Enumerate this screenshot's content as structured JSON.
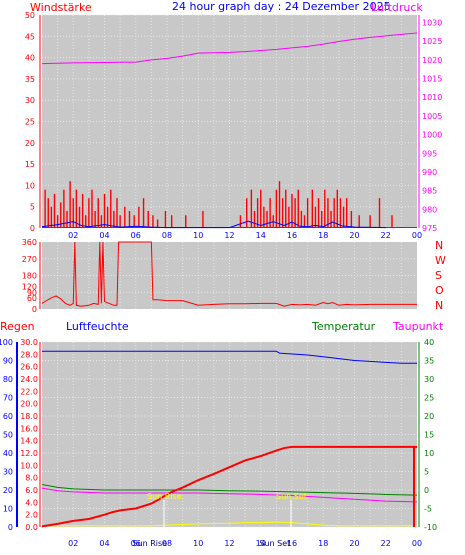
{
  "colors": {
    "background": "#ffffff",
    "plot_bg": "#c8c8c8",
    "grid": "#e6e6e6",
    "wind": "#ff0000",
    "gust_low": "#0000ff",
    "pressure": "#ff00ff",
    "rain": "#ff0000",
    "humidity": "#0000ff",
    "temperature": "#008000",
    "dewpoint": "#ff00ff",
    "solar": "#ffff00"
  },
  "header": {
    "wind_label": "Windstärke",
    "title": "24 hour graph day : 24 Dezember 2025",
    "pressure_label": "Luftdruck"
  },
  "direction_labels": [
    "N",
    "W",
    "S",
    "O",
    "N"
  ],
  "bottom_labels": {
    "rain": "Regen",
    "humidity": "Luftfeuchte",
    "temperature": "Temperatur",
    "dewpoint": "Taupunkt"
  },
  "annotations": [
    "Sun Rise",
    "Sun Set",
    "Sun Rise",
    "Sun Set"
  ],
  "chart_data": [
    {
      "type": "bar",
      "name": "wind_pressure",
      "x_ticks": [
        "02",
        "04",
        "06",
        "08",
        "10",
        "12",
        "14",
        "16",
        "18",
        "20",
        "22",
        "00"
      ],
      "y_left_ticks": [
        0,
        5,
        10,
        15,
        20,
        25,
        30,
        35,
        40,
        45,
        50
      ],
      "y_right_ticks": [
        975,
        980,
        985,
        990,
        995,
        1000,
        1005,
        1010,
        1015,
        1020,
        1025,
        1030
      ],
      "ylim_left": [
        0,
        50
      ],
      "ylim_right": [
        975,
        1032
      ],
      "wind_bars": [
        {
          "hour": 0.2,
          "v": 9
        },
        {
          "hour": 0.4,
          "v": 7
        },
        {
          "hour": 0.6,
          "v": 5
        },
        {
          "hour": 0.8,
          "v": 8
        },
        {
          "hour": 1.0,
          "v": 3
        },
        {
          "hour": 1.2,
          "v": 6
        },
        {
          "hour": 1.4,
          "v": 9
        },
        {
          "hour": 1.6,
          "v": 4
        },
        {
          "hour": 1.8,
          "v": 11
        },
        {
          "hour": 2.0,
          "v": 7
        },
        {
          "hour": 2.2,
          "v": 9
        },
        {
          "hour": 2.4,
          "v": 5
        },
        {
          "hour": 2.6,
          "v": 8
        },
        {
          "hour": 2.8,
          "v": 3
        },
        {
          "hour": 3.0,
          "v": 7
        },
        {
          "hour": 3.2,
          "v": 9
        },
        {
          "hour": 3.4,
          "v": 4
        },
        {
          "hour": 3.6,
          "v": 7
        },
        {
          "hour": 3.8,
          "v": 3
        },
        {
          "hour": 4.0,
          "v": 8
        },
        {
          "hour": 4.2,
          "v": 5
        },
        {
          "hour": 4.4,
          "v": 9
        },
        {
          "hour": 4.6,
          "v": 4
        },
        {
          "hour": 4.8,
          "v": 7
        },
        {
          "hour": 5.0,
          "v": 3
        },
        {
          "hour": 5.3,
          "v": 5
        },
        {
          "hour": 5.6,
          "v": 4
        },
        {
          "hour": 5.9,
          "v": 3
        },
        {
          "hour": 6.2,
          "v": 5
        },
        {
          "hour": 6.5,
          "v": 7
        },
        {
          "hour": 6.8,
          "v": 4
        },
        {
          "hour": 7.1,
          "v": 3
        },
        {
          "hour": 7.4,
          "v": 2
        },
        {
          "hour": 7.9,
          "v": 4
        },
        {
          "hour": 8.3,
          "v": 3
        },
        {
          "hour": 9.2,
          "v": 3
        },
        {
          "hour": 10.3,
          "v": 4
        },
        {
          "hour": 12.7,
          "v": 3
        },
        {
          "hour": 13.1,
          "v": 7
        },
        {
          "hour": 13.4,
          "v": 9
        },
        {
          "hour": 13.6,
          "v": 4
        },
        {
          "hour": 13.8,
          "v": 7
        },
        {
          "hour": 14.0,
          "v": 9
        },
        {
          "hour": 14.2,
          "v": 5
        },
        {
          "hour": 14.4,
          "v": 4
        },
        {
          "hour": 14.6,
          "v": 7
        },
        {
          "hour": 14.8,
          "v": 3
        },
        {
          "hour": 15.0,
          "v": 9
        },
        {
          "hour": 15.2,
          "v": 11
        },
        {
          "hour": 15.4,
          "v": 7
        },
        {
          "hour": 15.6,
          "v": 9
        },
        {
          "hour": 15.8,
          "v": 5
        },
        {
          "hour": 16.0,
          "v": 8
        },
        {
          "hour": 16.2,
          "v": 7
        },
        {
          "hour": 16.4,
          "v": 9
        },
        {
          "hour": 16.6,
          "v": 4
        },
        {
          "hour": 16.8,
          "v": 3
        },
        {
          "hour": 17.0,
          "v": 7
        },
        {
          "hour": 17.3,
          "v": 9
        },
        {
          "hour": 17.5,
          "v": 5
        },
        {
          "hour": 17.7,
          "v": 7
        },
        {
          "hour": 17.9,
          "v": 4
        },
        {
          "hour": 18.1,
          "v": 9
        },
        {
          "hour": 18.3,
          "v": 7
        },
        {
          "hour": 18.5,
          "v": 4
        },
        {
          "hour": 18.7,
          "v": 7
        },
        {
          "hour": 18.9,
          "v": 9
        },
        {
          "hour": 19.1,
          "v": 7
        },
        {
          "hour": 19.3,
          "v": 5
        },
        {
          "hour": 19.5,
          "v": 7
        },
        {
          "hour": 19.8,
          "v": 4
        },
        {
          "hour": 20.3,
          "v": 3
        },
        {
          "hour": 21.0,
          "v": 3
        },
        {
          "hour": 21.6,
          "v": 7
        },
        {
          "hour": 22.4,
          "v": 3
        }
      ],
      "gust_points": [
        [
          0.0,
          0.3
        ],
        [
          1.0,
          0.8
        ],
        [
          2.0,
          1.5
        ],
        [
          2.5,
          0.6
        ],
        [
          3.0,
          0.3
        ],
        [
          4.0,
          0.8
        ],
        [
          5.0,
          0.2
        ],
        [
          6.0,
          0.4
        ],
        [
          7.0,
          0.2
        ],
        [
          8.0,
          0.1
        ],
        [
          12.0,
          0.1
        ],
        [
          13.2,
          1.6
        ],
        [
          14.0,
          0.6
        ],
        [
          14.8,
          1.5
        ],
        [
          15.5,
          0.6
        ],
        [
          16.0,
          1.4
        ],
        [
          16.5,
          0.4
        ],
        [
          17.0,
          0.3
        ],
        [
          17.5,
          0.6
        ],
        [
          18.0,
          0.3
        ],
        [
          18.6,
          1.4
        ],
        [
          19.2,
          0.5
        ],
        [
          20.0,
          0.2
        ],
        [
          22.0,
          0.1
        ]
      ],
      "pressure": [
        [
          0.0,
          1019.0
        ],
        [
          2.0,
          1019.2
        ],
        [
          4.0,
          1019.3
        ],
        [
          6.0,
          1019.4
        ],
        [
          7.0,
          1020.0
        ],
        [
          8.0,
          1020.4
        ],
        [
          9.0,
          1021.0
        ],
        [
          10.0,
          1021.8
        ],
        [
          11.0,
          1021.9
        ],
        [
          12.0,
          1022.0
        ],
        [
          13.0,
          1022.2
        ],
        [
          14.0,
          1022.5
        ],
        [
          15.0,
          1022.8
        ],
        [
          16.0,
          1023.2
        ],
        [
          17.0,
          1023.6
        ],
        [
          18.0,
          1024.2
        ],
        [
          19.0,
          1024.9
        ],
        [
          20.0,
          1025.5
        ],
        [
          21.0,
          1026.0
        ],
        [
          22.0,
          1026.4
        ],
        [
          23.0,
          1026.8
        ],
        [
          24.0,
          1027.2
        ]
      ]
    },
    {
      "type": "line",
      "name": "wind_direction",
      "y_ticks": [
        0,
        60,
        90,
        120,
        180,
        270,
        360
      ],
      "ylim": [
        0,
        360
      ],
      "direction": [
        [
          0.0,
          30
        ],
        [
          0.3,
          45
        ],
        [
          0.6,
          60
        ],
        [
          0.9,
          70
        ],
        [
          1.2,
          55
        ],
        [
          1.5,
          30
        ],
        [
          1.8,
          20
        ],
        [
          2.0,
          30
        ],
        [
          2.1,
          360
        ],
        [
          2.2,
          20
        ],
        [
          2.5,
          15
        ],
        [
          3.0,
          20
        ],
        [
          3.3,
          30
        ],
        [
          3.6,
          25
        ],
        [
          3.7,
          360
        ],
        [
          3.8,
          30
        ],
        [
          3.9,
          360
        ],
        [
          4.0,
          40
        ],
        [
          4.3,
          30
        ],
        [
          4.6,
          20
        ],
        [
          4.8,
          20
        ],
        [
          4.9,
          360
        ],
        [
          7.0,
          360
        ],
        [
          7.1,
          50
        ],
        [
          7.4,
          50
        ],
        [
          8.0,
          45
        ],
        [
          9.0,
          45
        ],
        [
          10.0,
          20
        ],
        [
          11.0,
          25
        ],
        [
          12.0,
          28
        ],
        [
          13.0,
          28
        ],
        [
          14.0,
          30
        ],
        [
          15.0,
          30
        ],
        [
          15.5,
          15
        ],
        [
          16.0,
          25
        ],
        [
          16.5,
          22
        ],
        [
          17.0,
          25
        ],
        [
          17.5,
          20
        ],
        [
          18.0,
          35
        ],
        [
          18.3,
          28
        ],
        [
          18.6,
          35
        ],
        [
          19.0,
          20
        ],
        [
          19.5,
          25
        ],
        [
          20.0,
          22
        ],
        [
          21.0,
          25
        ],
        [
          22.0,
          25
        ],
        [
          23.0,
          25
        ],
        [
          24.0,
          25
        ]
      ]
    },
    {
      "type": "line",
      "name": "rain_humidity_temperature_dewpoint",
      "x_ticks": [
        "02",
        "04",
        "Sun Rise",
        "06",
        "08",
        "10",
        "12",
        "14",
        "Sun Set",
        "16",
        "18",
        "20",
        "22",
        "00"
      ],
      "y_humidity_ticks": [
        0,
        10,
        20,
        30,
        40,
        50,
        60,
        70,
        80,
        90,
        100
      ],
      "y_rain_ticks": [
        0.0,
        2.0,
        4.0,
        6.0,
        8.0,
        10.0,
        12.0,
        14.0,
        16.0,
        18.0,
        20.0,
        22.0,
        24.0,
        26.0,
        28.0,
        30.0
      ],
      "y_temp_ticks": [
        -10,
        -5,
        0,
        5,
        10,
        15,
        20,
        25,
        30,
        35,
        40
      ],
      "ylim_humidity": [
        0,
        100
      ],
      "ylim_rain": [
        0,
        30
      ],
      "ylim_temp": [
        -10,
        40
      ],
      "rain": [
        [
          0.0,
          0.1
        ],
        [
          0.5,
          0.3
        ],
        [
          1.0,
          0.5
        ],
        [
          2.0,
          1.0
        ],
        [
          3.0,
          1.3
        ],
        [
          4.0,
          2.0
        ],
        [
          4.5,
          2.4
        ],
        [
          5.0,
          2.7
        ],
        [
          6.0,
          3.0
        ],
        [
          7.0,
          3.8
        ],
        [
          7.5,
          4.5
        ],
        [
          8.0,
          5.3
        ],
        [
          8.5,
          5.9
        ],
        [
          9.0,
          6.4
        ],
        [
          10.0,
          7.6
        ],
        [
          11.0,
          8.6
        ],
        [
          12.0,
          9.7
        ],
        [
          13.0,
          10.8
        ],
        [
          14.0,
          11.5
        ],
        [
          15.0,
          12.4
        ],
        [
          15.5,
          12.8
        ],
        [
          16.0,
          13.0
        ],
        [
          17.0,
          13.0
        ],
        [
          18.0,
          13.0
        ],
        [
          19.0,
          13.0
        ],
        [
          20.0,
          13.0
        ],
        [
          22.0,
          13.0
        ],
        [
          24.0,
          13.0
        ]
      ],
      "humidity": [
        [
          0.0,
          95.0
        ],
        [
          4.0,
          95.0
        ],
        [
          8.0,
          95.0
        ],
        [
          12.0,
          95.0
        ],
        [
          15.0,
          95.0
        ],
        [
          15.2,
          94.0
        ],
        [
          16.0,
          93.5
        ],
        [
          17.0,
          93.0
        ],
        [
          18.0,
          92.0
        ],
        [
          19.0,
          91.0
        ],
        [
          20.0,
          90.0
        ],
        [
          21.0,
          89.5
        ],
        [
          22.0,
          89.0
        ],
        [
          23.0,
          88.5
        ],
        [
          24.0,
          88.5
        ]
      ],
      "temperature": [
        [
          0.0,
          1.5
        ],
        [
          1.0,
          0.7
        ],
        [
          2.0,
          0.3
        ],
        [
          4.0,
          0.0
        ],
        [
          6.0,
          0.0
        ],
        [
          8.0,
          0.0
        ],
        [
          10.0,
          0.0
        ],
        [
          12.0,
          -0.2
        ],
        [
          14.0,
          -0.3
        ],
        [
          16.0,
          -0.5
        ],
        [
          18.0,
          -0.7
        ],
        [
          20.0,
          -0.9
        ],
        [
          22.0,
          -1.2
        ],
        [
          24.0,
          -1.4
        ]
      ],
      "dewpoint": [
        [
          0.0,
          0.5
        ],
        [
          1.0,
          -0.2
        ],
        [
          2.0,
          -0.5
        ],
        [
          4.0,
          -0.8
        ],
        [
          6.0,
          -0.8
        ],
        [
          8.0,
          -0.8
        ],
        [
          10.0,
          -0.8
        ],
        [
          12.0,
          -1.0
        ],
        [
          14.0,
          -1.2
        ],
        [
          16.0,
          -1.5
        ],
        [
          18.0,
          -2.0
        ],
        [
          20.0,
          -2.5
        ],
        [
          22.0,
          -3.0
        ],
        [
          24.0,
          -3.2
        ]
      ],
      "solar": [
        [
          0.0,
          0.2
        ],
        [
          7.0,
          0.2
        ],
        [
          8.0,
          0.3
        ],
        [
          10.0,
          0.5
        ],
        [
          12.0,
          0.6
        ],
        [
          13.0,
          0.7
        ],
        [
          14.0,
          0.7
        ],
        [
          15.0,
          0.8
        ],
        [
          16.0,
          0.7
        ],
        [
          17.0,
          0.5
        ],
        [
          18.0,
          0.3
        ],
        [
          19.0,
          0.2
        ],
        [
          24.0,
          0.2
        ]
      ]
    }
  ]
}
